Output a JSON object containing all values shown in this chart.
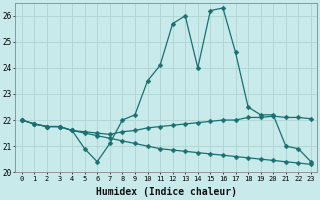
{
  "xlabel": "Humidex (Indice chaleur)",
  "background_color": "#c8eaea",
  "grid_color": "#b0d4d4",
  "line_color": "#1a7070",
  "xlim": [
    -0.5,
    23.5
  ],
  "ylim": [
    20.0,
    26.5
  ],
  "yticks": [
    20,
    21,
    22,
    23,
    24,
    25,
    26
  ],
  "xticks": [
    0,
    1,
    2,
    3,
    4,
    5,
    6,
    7,
    8,
    9,
    10,
    11,
    12,
    13,
    14,
    15,
    16,
    17,
    18,
    19,
    20,
    21,
    22,
    23
  ],
  "line1_x": [
    0,
    1,
    2,
    3,
    4,
    5,
    6,
    7,
    8,
    9,
    10,
    11,
    12,
    13,
    14,
    15,
    16,
    17,
    18,
    19,
    20,
    21,
    22,
    23
  ],
  "line1_y": [
    22.0,
    21.85,
    21.75,
    21.75,
    21.6,
    21.5,
    21.4,
    21.3,
    21.2,
    21.1,
    21.0,
    20.9,
    20.85,
    20.8,
    20.75,
    20.7,
    20.65,
    20.6,
    20.55,
    20.5,
    20.45,
    20.4,
    20.35,
    20.3
  ],
  "line2_x": [
    0,
    1,
    2,
    3,
    4,
    5,
    6,
    7,
    8,
    9,
    10,
    11,
    12,
    13,
    14,
    15,
    16,
    17,
    18,
    19,
    20,
    21,
    22,
    23
  ],
  "line2_y": [
    22.0,
    21.85,
    21.75,
    21.75,
    21.6,
    20.9,
    20.4,
    21.1,
    22.0,
    22.2,
    23.5,
    24.1,
    25.7,
    26.0,
    24.0,
    26.2,
    26.3,
    24.6,
    22.5,
    22.2,
    22.2,
    21.0,
    20.9,
    20.4
  ],
  "line3_x": [
    0,
    1,
    2,
    3,
    4,
    5,
    6,
    7,
    8,
    9,
    10,
    11,
    12,
    13,
    14,
    15,
    16,
    17,
    18,
    19,
    20,
    21,
    22,
    23
  ],
  "line3_y": [
    22.0,
    21.85,
    21.75,
    21.75,
    21.6,
    21.55,
    21.5,
    21.45,
    21.55,
    21.6,
    21.7,
    21.75,
    21.8,
    21.85,
    21.9,
    21.95,
    22.0,
    22.0,
    22.1,
    22.1,
    22.15,
    22.1,
    22.1,
    22.05
  ]
}
